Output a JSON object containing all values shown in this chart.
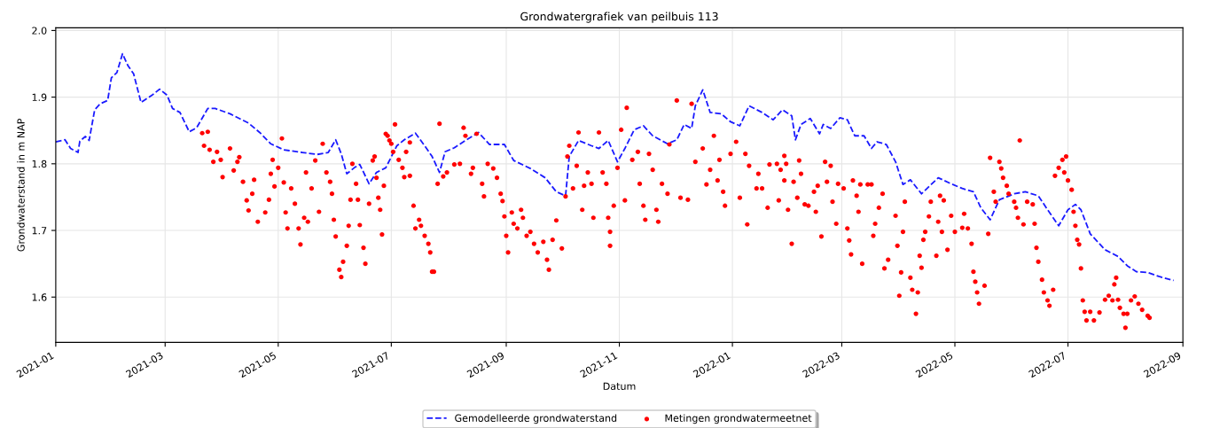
{
  "chart_data": {
    "type": "line",
    "title": "Grondwatergrafiek van peilbuis 113",
    "xlabel": "Datum",
    "ylabel": "Grondwaterstand in m NAP",
    "xlim": [
      "2021-01-01",
      "2022-09-01"
    ],
    "ylim": [
      1.532,
      2.004
    ],
    "xticks": [
      {
        "value": "2021-01-01",
        "label": "2021-01"
      },
      {
        "value": "2021-03-01",
        "label": "2021-03"
      },
      {
        "value": "2021-05-01",
        "label": "2021-05"
      },
      {
        "value": "2021-07-01",
        "label": "2021-07"
      },
      {
        "value": "2021-09-01",
        "label": "2021-09"
      },
      {
        "value": "2021-11-01",
        "label": "2021-11"
      },
      {
        "value": "2022-01-01",
        "label": "2022-01"
      },
      {
        "value": "2022-03-01",
        "label": "2022-03"
      },
      {
        "value": "2022-05-01",
        "label": "2022-05"
      },
      {
        "value": "2022-07-01",
        "label": "2022-07"
      },
      {
        "value": "2022-09-01",
        "label": "2022-09"
      }
    ],
    "yticks": [
      {
        "value": 1.6,
        "label": "1.6"
      },
      {
        "value": 1.7,
        "label": "1.7"
      },
      {
        "value": 1.8,
        "label": "1.8"
      },
      {
        "value": 1.9,
        "label": "1.9"
      },
      {
        "value": 2.0,
        "label": "2.0"
      }
    ],
    "grid": true,
    "legend": "bottom",
    "series": [
      {
        "name": "Gemodelleerde grondwaterstand",
        "color": "#1a1aff",
        "line_style": "dashed",
        "marker": "none",
        "x": [
          "2021-01-01",
          "2021-01-06",
          "2021-01-09",
          "2021-01-13",
          "2021-01-14",
          "2021-01-17",
          "2021-01-19",
          "2021-01-22",
          "2021-01-25",
          "2021-01-29",
          "2021-01-31",
          "2021-02-03",
          "2021-02-06",
          "2021-02-09",
          "2021-02-12",
          "2021-02-16",
          "2021-02-22",
          "2021-02-26",
          "2021-03-02",
          "2021-03-05",
          "2021-03-09",
          "2021-03-14",
          "2021-03-18",
          "2021-03-24",
          "2021-03-28",
          "2021-04-05",
          "2021-04-15",
          "2021-04-21",
          "2021-04-27",
          "2021-05-04",
          "2021-05-14",
          "2021-05-22",
          "2021-05-28",
          "2021-06-01",
          "2021-06-04",
          "2021-06-07",
          "2021-06-11",
          "2021-06-14",
          "2021-06-19",
          "2021-06-23",
          "2021-06-28",
          "2021-07-04",
          "2021-07-08",
          "2021-07-14",
          "2021-07-19",
          "2021-07-23",
          "2021-07-27",
          "2021-07-30",
          "2021-08-04",
          "2021-08-10",
          "2021-08-17",
          "2021-08-23",
          "2021-08-31",
          "2021-09-05",
          "2021-09-14",
          "2021-09-22",
          "2021-09-28",
          "2021-10-03",
          "2021-10-05",
          "2021-10-10",
          "2021-10-17",
          "2021-10-21",
          "2021-10-26",
          "2021-10-31",
          "2021-11-04",
          "2021-11-09",
          "2021-11-14",
          "2021-11-19",
          "2021-11-27",
          "2021-12-02",
          "2021-12-06",
          "2021-12-10",
          "2021-12-12",
          "2021-12-16",
          "2021-12-20",
          "2021-12-26",
          "2021-12-31",
          "2022-01-05",
          "2022-01-10",
          "2022-01-17",
          "2022-01-23",
          "2022-01-28",
          "2022-02-02",
          "2022-02-04",
          "2022-02-07",
          "2022-02-12",
          "2022-02-17",
          "2022-02-19",
          "2022-02-23",
          "2022-02-28",
          "2022-03-04",
          "2022-03-08",
          "2022-03-13",
          "2022-03-17",
          "2022-03-20",
          "2022-03-25",
          "2022-03-30",
          "2022-04-03",
          "2022-04-07",
          "2022-04-13",
          "2022-04-22",
          "2022-04-29",
          "2022-05-05",
          "2022-05-11",
          "2022-05-15",
          "2022-05-20",
          "2022-05-25",
          "2022-06-02",
          "2022-06-08",
          "2022-06-15",
          "2022-06-20",
          "2022-06-26",
          "2022-07-01",
          "2022-07-05",
          "2022-07-08",
          "2022-07-13",
          "2022-07-21",
          "2022-07-28",
          "2022-08-02",
          "2022-08-07",
          "2022-08-13",
          "2022-08-19",
          "2022-08-27"
        ],
        "values": [
          1.833,
          1.836,
          1.823,
          1.817,
          1.834,
          1.841,
          1.835,
          1.881,
          1.89,
          1.895,
          1.929,
          1.937,
          1.965,
          1.947,
          1.935,
          1.892,
          1.903,
          1.912,
          1.903,
          1.883,
          1.877,
          1.848,
          1.854,
          1.883,
          1.883,
          1.875,
          1.861,
          1.847,
          1.83,
          1.821,
          1.817,
          1.814,
          1.817,
          1.836,
          1.815,
          1.785,
          1.794,
          1.799,
          1.77,
          1.787,
          1.794,
          1.827,
          1.836,
          1.846,
          1.827,
          1.811,
          1.787,
          1.818,
          1.824,
          1.835,
          1.847,
          1.829,
          1.829,
          1.805,
          1.793,
          1.779,
          1.758,
          1.752,
          1.811,
          1.835,
          1.827,
          1.823,
          1.835,
          1.803,
          1.823,
          1.851,
          1.857,
          1.842,
          1.83,
          1.836,
          1.859,
          1.853,
          1.887,
          1.911,
          1.877,
          1.875,
          1.863,
          1.857,
          1.887,
          1.877,
          1.866,
          1.881,
          1.872,
          1.836,
          1.859,
          1.868,
          1.845,
          1.859,
          1.853,
          1.869,
          1.866,
          1.842,
          1.842,
          1.823,
          1.833,
          1.829,
          1.803,
          1.769,
          1.776,
          1.755,
          1.779,
          1.77,
          1.763,
          1.758,
          1.734,
          1.716,
          1.746,
          1.755,
          1.758,
          1.752,
          1.731,
          1.707,
          1.731,
          1.739,
          1.731,
          1.695,
          1.671,
          1.661,
          1.647,
          1.638,
          1.637,
          1.631,
          1.625
        ]
      },
      {
        "name": "Metingen grondwatermeetnet",
        "type": "scatter",
        "color": "#ff0000",
        "marker": "circle",
        "x": [
          "2021-03-21",
          "2021-03-24",
          "2021-03-22",
          "2021-03-25",
          "2021-03-27",
          "2021-03-29",
          "2021-03-31",
          "2021-04-01",
          "2021-04-05",
          "2021-04-07",
          "2021-04-09",
          "2021-04-10",
          "2021-04-12",
          "2021-04-14",
          "2021-04-15",
          "2021-04-17",
          "2021-04-18",
          "2021-04-20",
          "2021-04-24",
          "2021-04-26",
          "2021-04-27",
          "2021-04-28",
          "2021-04-29",
          "2021-05-01",
          "2021-05-03",
          "2021-05-04",
          "2021-05-05",
          "2021-05-06",
          "2021-05-08",
          "2021-05-10",
          "2021-05-12",
          "2021-05-13",
          "2021-05-15",
          "2021-05-16",
          "2021-05-17",
          "2021-05-19",
          "2021-05-21",
          "2021-05-23",
          "2021-05-25",
          "2021-05-27",
          "2021-05-29",
          "2021-05-30",
          "2021-05-31",
          "2021-06-01",
          "2021-06-03",
          "2021-06-04",
          "2021-06-05",
          "2021-06-07",
          "2021-06-08",
          "2021-06-09",
          "2021-06-10",
          "2021-06-12",
          "2021-06-13",
          "2021-06-14",
          "2021-06-16",
          "2021-06-17",
          "2021-06-19",
          "2021-06-21",
          "2021-06-22",
          "2021-06-23",
          "2021-06-24",
          "2021-06-25",
          "2021-06-26",
          "2021-06-27",
          "2021-06-28",
          "2021-06-30",
          "2021-07-02",
          "2021-07-03",
          "2021-06-29",
          "2021-07-01",
          "2021-07-05",
          "2021-07-07",
          "2021-07-08",
          "2021-07-09",
          "2021-07-11",
          "2021-07-11",
          "2021-07-13",
          "2021-07-14",
          "2021-07-16",
          "2021-07-17",
          "2021-07-19",
          "2021-07-21",
          "2021-07-22",
          "2021-07-23",
          "2021-07-24",
          "2021-07-26",
          "2021-07-27",
          "2021-07-29",
          "2021-07-31",
          "2021-08-04",
          "2021-08-07",
          "2021-08-09",
          "2021-08-10",
          "2021-08-13",
          "2021-08-14",
          "2021-08-16",
          "2021-08-19",
          "2021-08-20",
          "2021-08-22",
          "2021-08-25",
          "2021-08-27",
          "2021-08-29",
          "2021-08-30",
          "2021-08-31",
          "2021-09-01",
          "2021-09-02",
          "2021-09-04",
          "2021-09-05",
          "2021-09-07",
          "2021-09-09",
          "2021-09-10",
          "2021-09-12",
          "2021-09-14",
          "2021-09-16",
          "2021-09-18",
          "2021-09-21",
          "2021-09-23",
          "2021-09-24",
          "2021-09-26",
          "2021-09-28",
          "2021-10-01",
          "2021-10-03",
          "2021-10-04",
          "2021-10-05",
          "2021-10-07",
          "2021-10-09",
          "2021-10-10",
          "2021-10-12",
          "2021-10-13",
          "2021-10-15",
          "2021-10-17",
          "2021-10-18",
          "2021-10-21",
          "2021-10-23",
          "2021-10-25",
          "2021-10-26",
          "2021-10-27",
          "2021-10-27",
          "2021-10-29",
          "2021-10-31",
          "2021-11-02",
          "2021-11-04",
          "2021-11-05",
          "2021-11-08",
          "2021-11-11",
          "2021-11-12",
          "2021-11-14",
          "2021-11-15",
          "2021-11-17",
          "2021-11-19",
          "2021-11-21",
          "2021-11-22",
          "2021-11-24",
          "2021-11-27",
          "2021-11-28",
          "2021-12-02",
          "2021-12-04",
          "2021-12-08",
          "2021-12-10",
          "2021-12-12",
          "2021-12-16",
          "2021-12-18",
          "2021-12-20",
          "2021-12-22",
          "2021-12-24",
          "2021-12-25",
          "2021-12-27",
          "2021-12-28",
          "2021-12-31",
          "2022-01-03",
          "2022-01-05",
          "2022-01-08",
          "2022-01-09",
          "2022-01-10",
          "2022-01-14",
          "2022-01-15",
          "2022-01-17",
          "2022-01-20",
          "2022-01-21",
          "2022-01-25",
          "2022-01-26",
          "2022-01-27",
          "2022-01-29",
          "2022-01-30",
          "2022-01-29",
          "2022-01-31",
          "2022-02-02",
          "2022-02-03",
          "2022-02-06",
          "2022-02-05",
          "2022-02-07",
          "2022-02-09",
          "2022-02-11",
          "2022-02-14",
          "2022-02-15",
          "2022-02-16",
          "2022-02-18",
          "2022-02-20",
          "2022-02-21",
          "2022-02-23",
          "2022-02-24",
          "2022-02-26",
          "2022-02-27",
          "2022-03-02",
          "2022-03-04",
          "2022-03-05",
          "2022-03-06",
          "2022-03-07",
          "2022-03-09",
          "2022-03-10",
          "2022-03-11",
          "2022-03-12",
          "2022-03-15",
          "2022-03-17",
          "2022-03-18",
          "2022-03-19",
          "2022-03-21",
          "2022-03-23",
          "2022-03-24",
          "2022-03-26",
          "2022-03-30",
          "2022-03-31",
          "2022-04-01",
          "2022-04-02",
          "2022-04-03",
          "2022-04-04",
          "2022-04-07",
          "2022-04-08",
          "2022-04-10",
          "2022-04-11",
          "2022-04-12",
          "2022-04-13",
          "2022-04-14",
          "2022-04-15",
          "2022-04-17",
          "2022-04-18",
          "2022-04-21",
          "2022-04-22",
          "2022-04-23",
          "2022-04-25",
          "2022-04-24",
          "2022-04-27",
          "2022-04-29",
          "2022-05-01",
          "2022-05-05",
          "2022-05-06",
          "2022-05-08",
          "2022-05-10",
          "2022-05-11",
          "2022-05-12",
          "2022-05-13",
          "2022-05-14",
          "2022-05-17",
          "2022-05-19",
          "2022-05-20",
          "2022-05-22",
          "2022-05-23",
          "2022-05-25",
          "2022-05-26",
          "2022-05-27",
          "2022-05-29",
          "2022-05-30",
          "2022-06-02",
          "2022-06-03",
          "2022-06-04",
          "2022-06-05",
          "2022-06-07",
          "2022-06-09",
          "2022-06-12",
          "2022-06-13",
          "2022-06-14",
          "2022-06-15",
          "2022-06-17",
          "2022-06-18",
          "2022-06-20",
          "2022-06-21",
          "2022-06-23",
          "2022-06-24",
          "2022-06-26",
          "2022-06-28",
          "2022-06-29",
          "2022-06-30",
          "2022-07-01",
          "2022-07-03",
          "2022-07-04",
          "2022-07-05",
          "2022-07-06",
          "2022-07-07",
          "2022-07-08",
          "2022-07-09",
          "2022-07-10",
          "2022-07-11",
          "2022-07-13",
          "2022-07-15",
          "2022-07-18",
          "2022-07-21",
          "2022-07-23",
          "2022-07-25",
          "2022-07-26",
          "2022-07-27",
          "2022-07-28",
          "2022-07-29",
          "2022-07-31",
          "2022-08-01",
          "2022-08-02",
          "2022-08-04",
          "2022-08-06",
          "2022-08-08",
          "2022-08-10",
          "2022-08-13",
          "2022-08-14"
        ],
        "values": [
          1.846,
          1.848,
          1.827,
          1.821,
          1.803,
          1.818,
          1.806,
          1.78,
          1.823,
          1.79,
          1.803,
          1.81,
          1.773,
          1.745,
          1.73,
          1.755,
          1.776,
          1.713,
          1.727,
          1.746,
          1.785,
          1.806,
          1.766,
          1.794,
          1.838,
          1.772,
          1.727,
          1.703,
          1.763,
          1.74,
          1.703,
          1.679,
          1.719,
          1.787,
          1.713,
          1.763,
          1.805,
          1.728,
          1.83,
          1.787,
          1.773,
          1.755,
          1.716,
          1.691,
          1.641,
          1.63,
          1.653,
          1.677,
          1.707,
          1.746,
          1.8,
          1.77,
          1.746,
          1.708,
          1.674,
          1.65,
          1.74,
          1.805,
          1.811,
          1.779,
          1.749,
          1.731,
          1.694,
          1.767,
          1.845,
          1.835,
          1.818,
          1.859,
          1.842,
          1.83,
          1.806,
          1.794,
          1.78,
          1.818,
          1.832,
          1.782,
          1.737,
          1.703,
          1.716,
          1.707,
          1.692,
          1.68,
          1.667,
          1.638,
          1.638,
          1.77,
          1.86,
          1.781,
          1.787,
          1.799,
          1.8,
          1.854,
          1.842,
          1.785,
          1.794,
          1.845,
          1.77,
          1.751,
          1.8,
          1.793,
          1.779,
          1.755,
          1.744,
          1.721,
          1.692,
          1.667,
          1.727,
          1.71,
          1.703,
          1.731,
          1.719,
          1.692,
          1.698,
          1.68,
          1.667,
          1.683,
          1.656,
          1.641,
          1.686,
          1.715,
          1.673,
          1.751,
          1.811,
          1.827,
          1.763,
          1.797,
          1.847,
          1.731,
          1.767,
          1.787,
          1.77,
          1.719,
          1.847,
          1.787,
          1.77,
          1.719,
          1.698,
          1.677,
          1.737,
          1.794,
          1.851,
          1.745,
          1.884,
          1.806,
          1.818,
          1.77,
          1.737,
          1.716,
          1.815,
          1.791,
          1.731,
          1.713,
          1.77,
          1.755,
          1.829,
          1.895,
          1.749,
          1.746,
          1.89,
          1.803,
          1.823,
          1.769,
          1.791,
          1.842,
          1.775,
          1.806,
          1.758,
          1.737,
          1.815,
          1.833,
          1.749,
          1.815,
          1.709,
          1.797,
          1.763,
          1.785,
          1.763,
          1.734,
          1.799,
          1.8,
          1.745,
          1.791,
          1.812,
          1.8,
          1.775,
          1.731,
          1.68,
          1.773,
          1.805,
          1.749,
          1.785,
          1.739,
          1.737,
          1.758,
          1.728,
          1.767,
          1.691,
          1.803,
          1.773,
          1.797,
          1.743,
          1.71,
          1.77,
          1.763,
          1.703,
          1.685,
          1.664,
          1.775,
          1.752,
          1.728,
          1.769,
          1.65,
          1.769,
          1.769,
          1.692,
          1.71,
          1.734,
          1.755,
          1.643,
          1.656,
          1.722,
          1.677,
          1.602,
          1.637,
          1.698,
          1.743,
          1.629,
          1.611,
          1.575,
          1.607,
          1.662,
          1.644,
          1.686,
          1.698,
          1.721,
          1.743,
          1.662,
          1.713,
          1.752,
          1.745,
          1.698,
          1.671,
          1.722,
          1.698,
          1.704,
          1.725,
          1.703,
          1.68,
          1.638,
          1.623,
          1.607,
          1.59,
          1.617,
          1.695,
          1.809,
          1.758,
          1.743,
          1.803,
          1.793,
          1.779,
          1.767,
          1.755,
          1.743,
          1.734,
          1.719,
          1.835,
          1.709,
          1.743,
          1.739,
          1.71,
          1.674,
          1.653,
          1.626,
          1.607,
          1.595,
          1.587,
          1.611,
          1.782,
          1.794,
          1.806,
          1.787,
          1.811,
          1.775,
          1.761,
          1.728,
          1.707,
          1.686,
          1.679,
          1.643,
          1.595,
          1.578,
          1.565,
          1.578,
          1.565,
          1.577,
          1.596,
          1.602,
          1.595,
          1.619,
          1.629,
          1.596,
          1.584,
          1.575,
          1.554,
          1.575,
          1.595,
          1.601,
          1.59,
          1.581,
          1.572,
          1.569
        ]
      }
    ]
  }
}
